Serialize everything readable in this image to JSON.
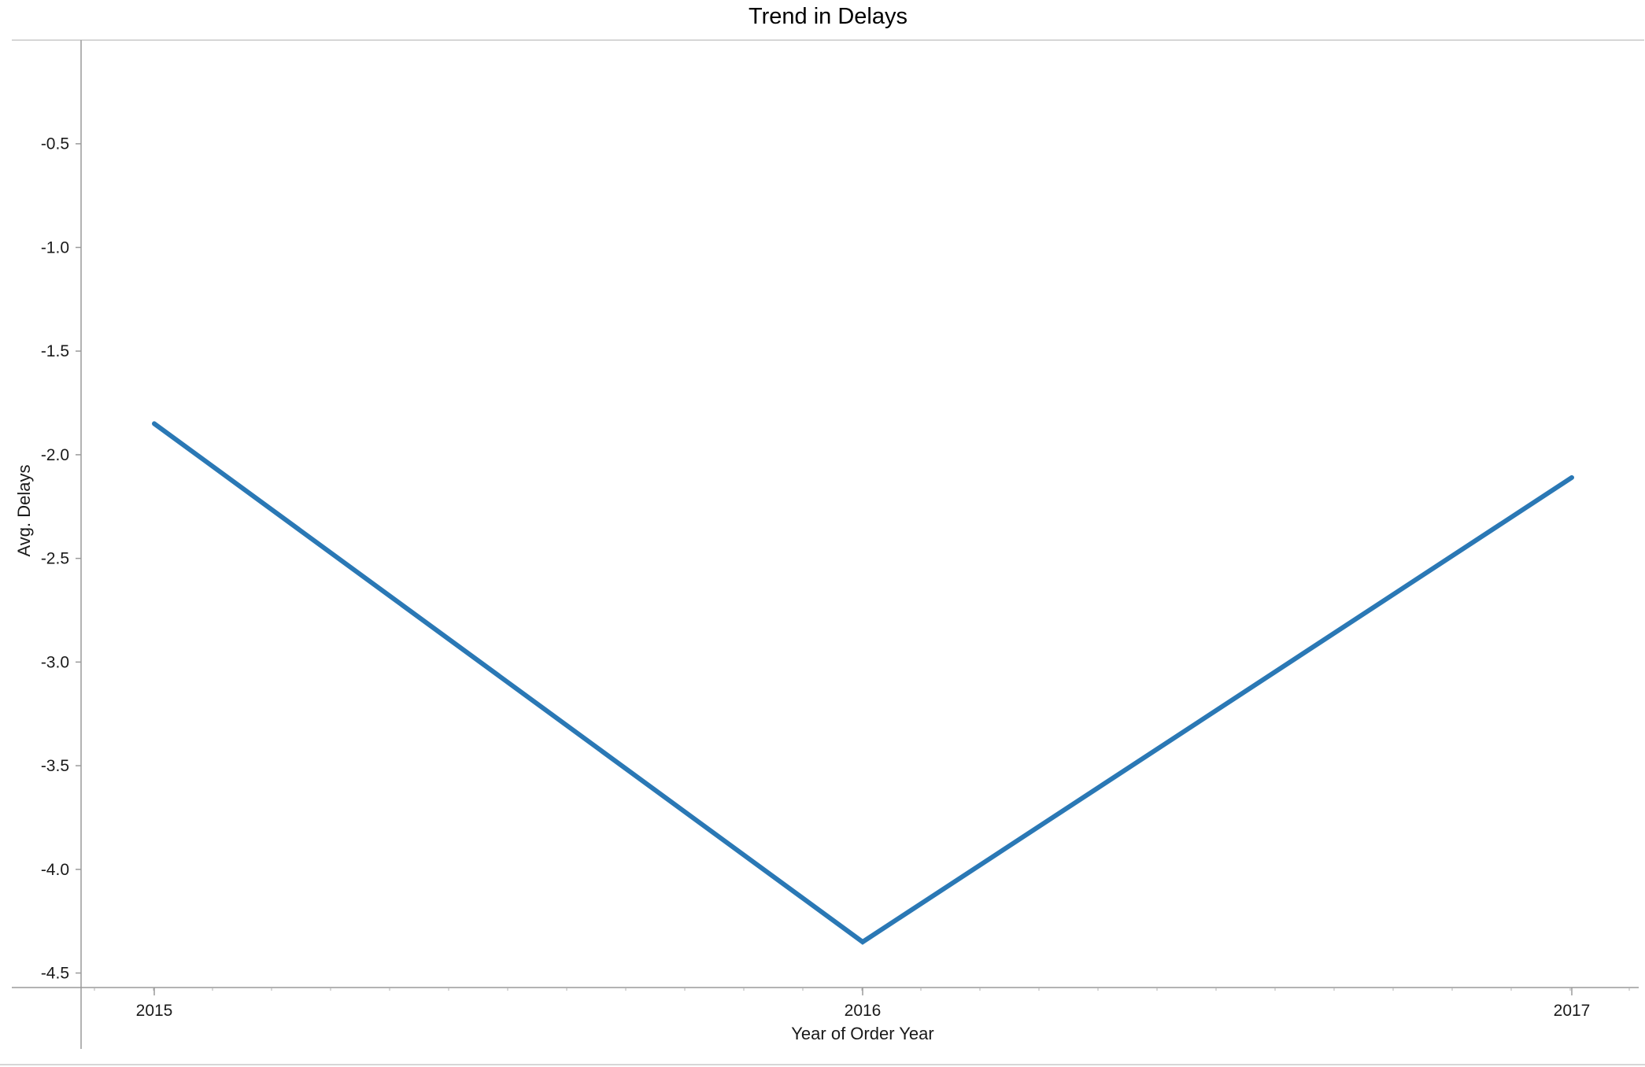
{
  "chart_data": {
    "type": "line",
    "title": "Trend in Delays",
    "xlabel": "Year of Order Year",
    "ylabel": "Avg. Delays",
    "categories": [
      "2015",
      "2016",
      "2017"
    ],
    "series": [
      {
        "values": [
          -1.85,
          -4.35,
          -2.11
        ]
      }
    ],
    "ylim": [
      -4.57,
      0
    ],
    "y_ticks": [
      "-0.5",
      "-1.0",
      "-1.5",
      "-2.0",
      "-2.5",
      "-3.0",
      "-3.5",
      "-4.0",
      "-4.5"
    ],
    "grid": false,
    "line_color": "#2a78b5"
  }
}
